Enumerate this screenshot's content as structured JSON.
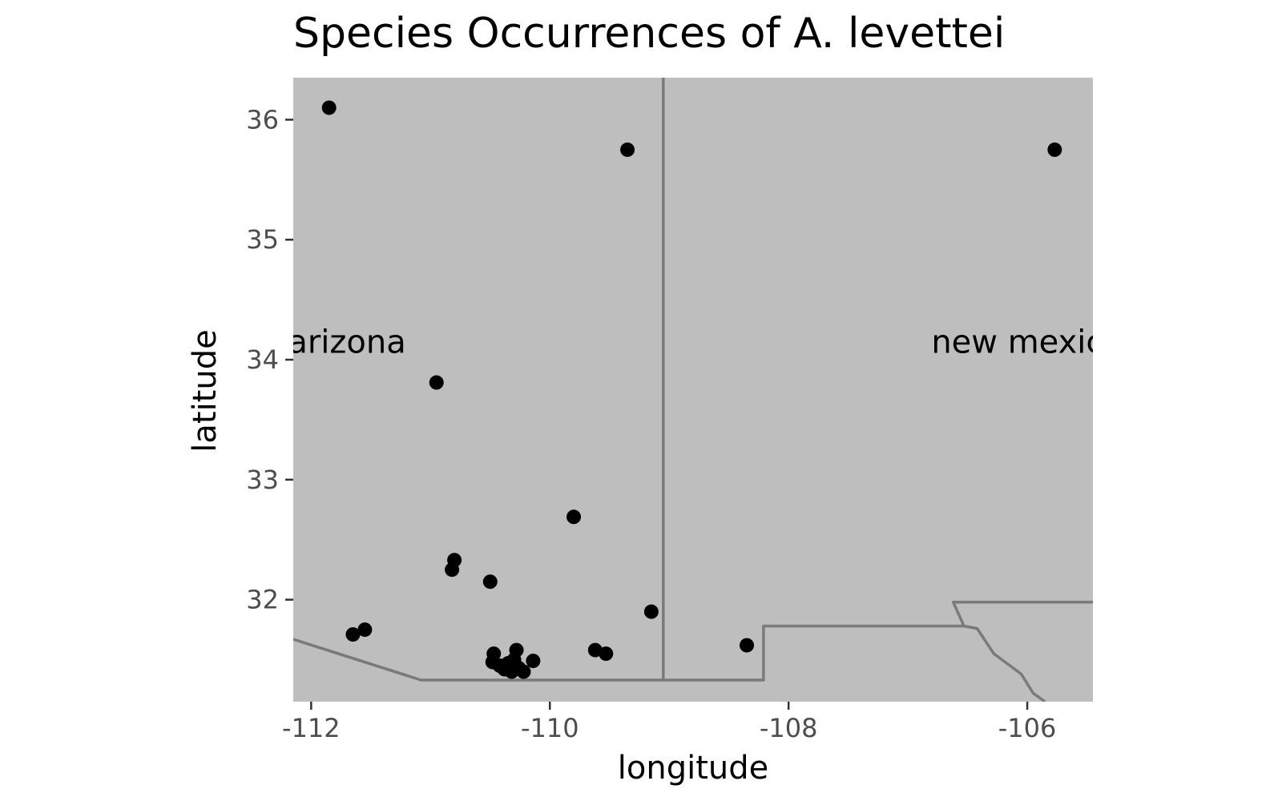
{
  "chart_data": {
    "type": "scatter",
    "title": "Species Occurrences of A. levettei",
    "xlabel": "longitude",
    "ylabel": "latitude",
    "xlim": [
      -112.15,
      -105.45
    ],
    "ylim": [
      31.15,
      36.35
    ],
    "x_ticks": [
      {
        "value": -112,
        "label": "-112"
      },
      {
        "value": -110,
        "label": "-110"
      },
      {
        "value": -108,
        "label": "-108"
      },
      {
        "value": -106,
        "label": "-106"
      }
    ],
    "y_ticks": [
      {
        "value": 32,
        "label": "32"
      },
      {
        "value": 33,
        "label": "33"
      },
      {
        "value": 34,
        "label": "34"
      },
      {
        "value": 35,
        "label": "35"
      },
      {
        "value": 36,
        "label": "36"
      }
    ],
    "region_labels": [
      {
        "text": "arizona",
        "lon": -111.7,
        "lat": 34.15
      },
      {
        "text": "new mexico",
        "lon": -106.0,
        "lat": 34.15
      }
    ],
    "points": [
      {
        "x": -111.85,
        "y": 36.1
      },
      {
        "x": -109.35,
        "y": 35.75
      },
      {
        "x": -105.77,
        "y": 35.75
      },
      {
        "x": -110.95,
        "y": 33.81
      },
      {
        "x": -109.8,
        "y": 32.69
      },
      {
        "x": -110.8,
        "y": 32.33
      },
      {
        "x": -110.82,
        "y": 32.25
      },
      {
        "x": -110.5,
        "y": 32.15
      },
      {
        "x": -109.15,
        "y": 31.9
      },
      {
        "x": -111.65,
        "y": 31.71
      },
      {
        "x": -111.55,
        "y": 31.75
      },
      {
        "x": -108.35,
        "y": 31.62
      },
      {
        "x": -109.62,
        "y": 31.58
      },
      {
        "x": -109.53,
        "y": 31.55
      },
      {
        "x": -110.47,
        "y": 31.55
      },
      {
        "x": -110.28,
        "y": 31.58
      },
      {
        "x": -110.48,
        "y": 31.48
      },
      {
        "x": -110.42,
        "y": 31.45
      },
      {
        "x": -110.38,
        "y": 31.42
      },
      {
        "x": -110.35,
        "y": 31.47
      },
      {
        "x": -110.32,
        "y": 31.4
      },
      {
        "x": -110.3,
        "y": 31.5
      },
      {
        "x": -110.26,
        "y": 31.43
      },
      {
        "x": -110.22,
        "y": 31.4
      },
      {
        "x": -110.14,
        "y": 31.49
      }
    ],
    "point_color": "#000000",
    "panel_color": "#bebebe",
    "border_color": "#7a7a7a",
    "grid": false,
    "borders": {
      "az_nm_line": [
        [
          -109.05,
          36.35
        ],
        [
          -109.05,
          31.33
        ]
      ],
      "az_mexico": [
        [
          -112.15,
          31.67
        ],
        [
          -111.08,
          31.33
        ],
        [
          -109.05,
          31.33
        ]
      ],
      "nm_bootheel": [
        [
          -109.05,
          31.33
        ],
        [
          -108.21,
          31.33
        ],
        [
          -108.21,
          31.78
        ],
        [
          -106.53,
          31.78
        ],
        [
          -106.62,
          31.98
        ],
        [
          -105.45,
          31.98
        ]
      ],
      "nm_texas_rio": [
        [
          -106.53,
          31.78
        ],
        [
          -106.42,
          31.76
        ],
        [
          -106.28,
          31.55
        ],
        [
          -106.05,
          31.38
        ],
        [
          -105.95,
          31.22
        ],
        [
          -105.85,
          31.15
        ]
      ]
    }
  }
}
